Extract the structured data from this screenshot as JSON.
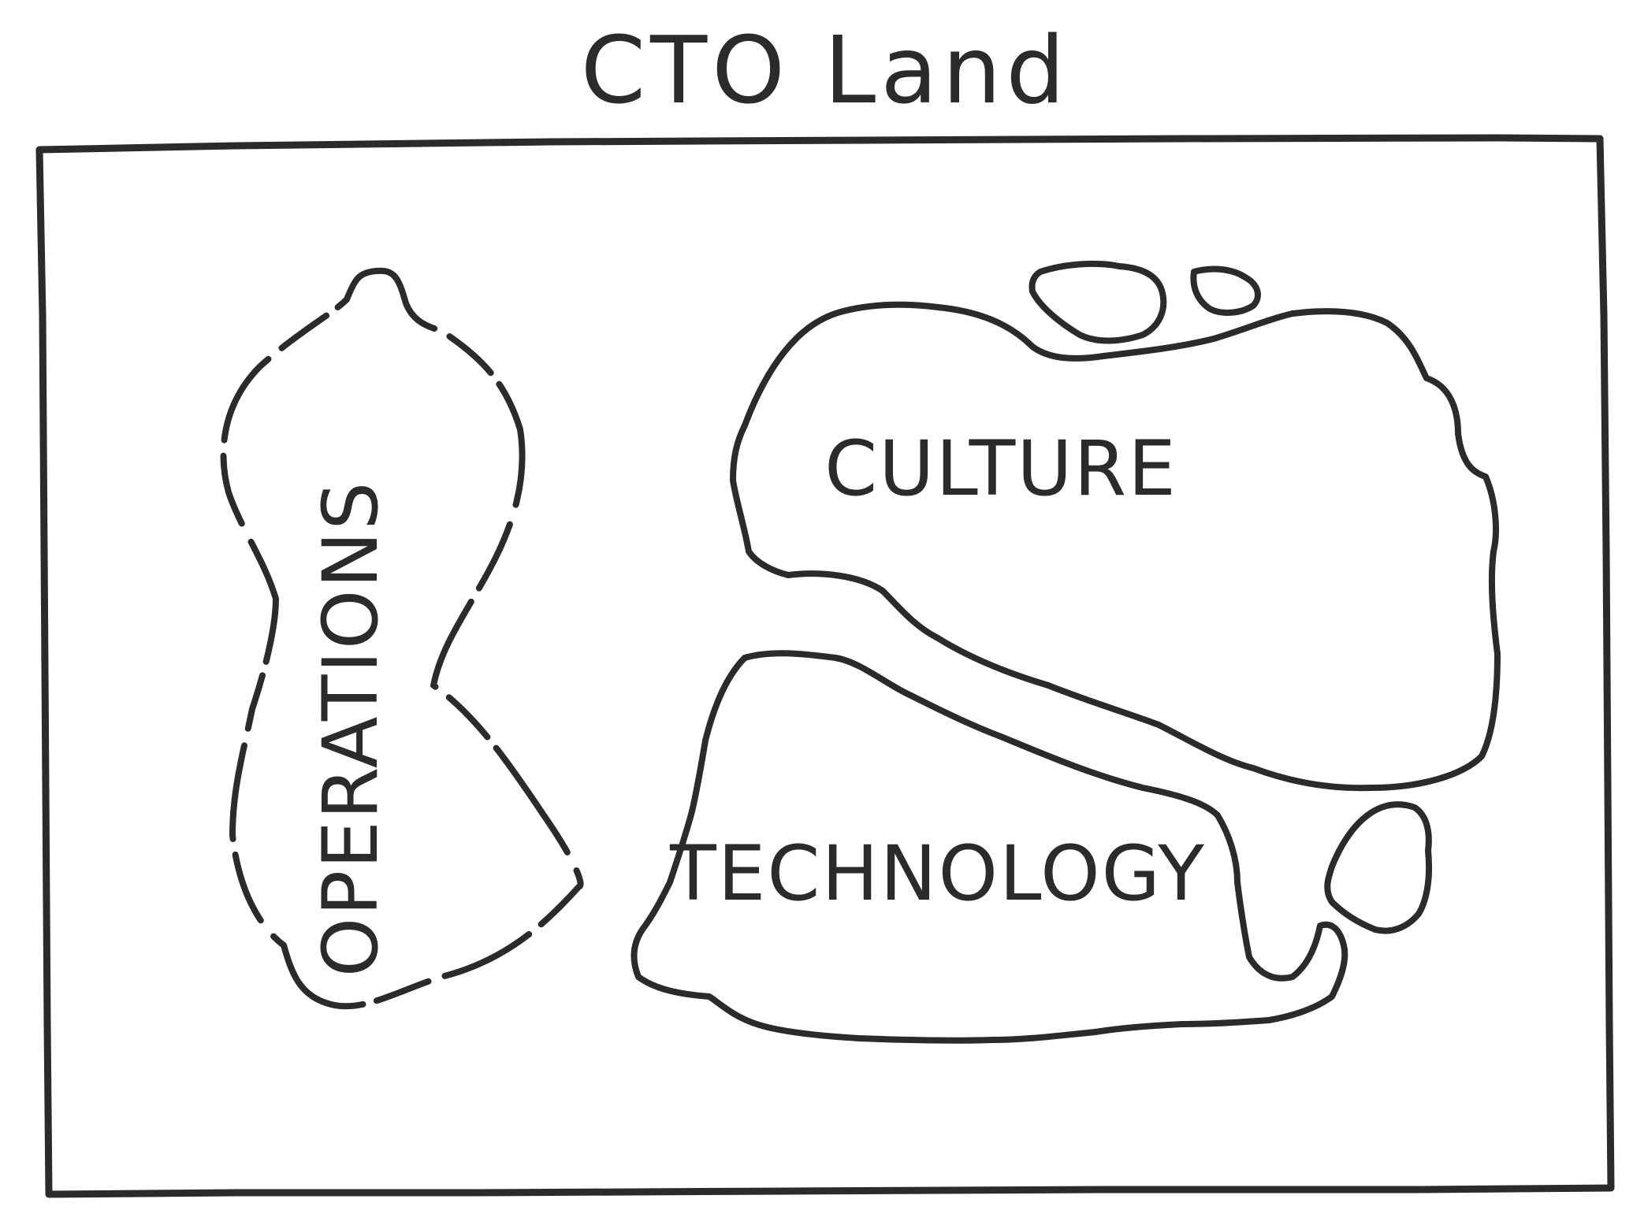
{
  "map": {
    "title": "CTO Land",
    "regions": [
      {
        "id": "operations",
        "label": "OPERATIONS"
      },
      {
        "id": "culture",
        "label": "CULTURE"
      },
      {
        "id": "technology",
        "label": "TECHNOLOGY"
      }
    ],
    "ink_color": "#2b2b2b",
    "background_color": "#ffffff"
  }
}
